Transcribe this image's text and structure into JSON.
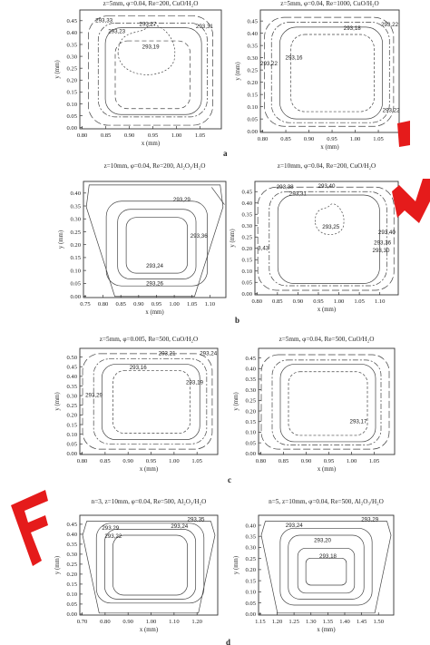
{
  "chart_data": [
    {
      "type": "contour",
      "title": "z=5mm, φ=0.04, Re=200, CuO/H₂O",
      "xlabel": "x (mm)",
      "ylabel": "y (mm)",
      "x_ticks": [
        "0.80",
        "0.85",
        "0.90",
        "0.95",
        "1.00",
        "1.05"
      ],
      "y_ticks": [
        "0.00",
        "0.05",
        "0.10",
        "0.15",
        "0.20",
        "0.25",
        "0.30",
        "0.35",
        "0.40",
        "0.45"
      ],
      "contour_labels": [
        "293,33",
        "293,27",
        "293,31",
        "293,23",
        "293,19"
      ]
    },
    {
      "type": "contour",
      "title": "z=5mm, φ=0.04, Re=1000, CuO/H₂O",
      "xlabel": "x (mm)",
      "ylabel": "y (mm)",
      "x_ticks": [
        "0.80",
        "0.85",
        "0.90",
        "0.95",
        "1.00",
        "1.05"
      ],
      "y_ticks": [
        "0.00",
        "0.05",
        "0.10",
        "0.15",
        "0.20",
        "0.25",
        "0.30",
        "0.35",
        "0.40",
        "0.45"
      ],
      "contour_labels": [
        "293,22",
        "293,18",
        "293,22",
        "293,16",
        "293,22"
      ]
    },
    {
      "type": "contour",
      "title": "z=10mm, φ=0.04, Re=200, Al₂O₃/H₂O",
      "xlabel": "x (mm)",
      "ylabel": "y (mm)",
      "x_ticks": [
        "0.75",
        "0.80",
        "0.85",
        "0.90",
        "0.95",
        "1.00",
        "1.05",
        "1.10"
      ],
      "y_ticks": [
        "0.00",
        "0.05",
        "0.10",
        "0.15",
        "0.20",
        "0.25",
        "0.30",
        "0.35",
        "0.40"
      ],
      "contour_labels": [
        "293,29",
        "293,36",
        "293,24",
        "293,26"
      ]
    },
    {
      "type": "contour",
      "title": "z=10mm, φ=0.04, Re=200, CuO/H₂O",
      "xlabel": "x (mm)",
      "ylabel": "y (mm)",
      "x_ticks": [
        "0.80",
        "0.85",
        "0.90",
        "0.95",
        "1.00",
        "1.05",
        "1.10"
      ],
      "y_ticks": [
        "0.00",
        "0.05",
        "0.10",
        "0.15",
        "0.20",
        "0.25",
        "0.30",
        "0.35",
        "0.40",
        "0.45"
      ],
      "contour_labels": [
        "293,38",
        "293,40",
        "293,31",
        "293,25",
        "293,40",
        "293,36",
        "293,30",
        "3,43"
      ]
    },
    {
      "type": "contour",
      "title": "z=5mm, φ=0.005, Re=500, CuO/H₂O",
      "xlabel": "x (mm)",
      "ylabel": "y (mm)",
      "x_ticks": [
        "0.80",
        "0.85",
        "0.90",
        "0.95",
        "1.00",
        "1.05"
      ],
      "y_ticks": [
        "0.00",
        "0.05",
        "0.10",
        "0.15",
        "0.20",
        "0.25",
        "0.30",
        "0.35",
        "0.40",
        "0.45",
        "0.50"
      ],
      "contour_labels": [
        "293,21",
        "293,24",
        "293,16",
        "293,19",
        "293,29"
      ]
    },
    {
      "type": "contour",
      "title": "z=5mm, φ=0.04, Re=500, CuO/H₂O",
      "xlabel": "x (mm)",
      "ylabel": "y (mm)",
      "x_ticks": [
        "0.80",
        "0.85",
        "0.90",
        "0.95",
        "1.00",
        "1.05"
      ],
      "y_ticks": [
        "0.00",
        "0.05",
        "0.10",
        "0.15",
        "0.20",
        "0.25",
        "0.30",
        "0.35",
        "0.40",
        "0.45"
      ],
      "contour_labels": [
        "293,17"
      ]
    },
    {
      "type": "contour",
      "title": "n=3, z=10mm, φ=0.04, Re=500, Al₂O₃/H₂O",
      "xlabel": "x (mm)",
      "ylabel": "y (mm)",
      "x_ticks": [
        "0.70",
        "0.80",
        "0.90",
        "1.00",
        "1.10",
        "1.20"
      ],
      "y_ticks": [
        "0.00",
        "0.05",
        "0.10",
        "0.15",
        "0.20",
        "0.25",
        "0.30",
        "0.35",
        "0.40",
        "0.45"
      ],
      "contour_labels": [
        "293,29",
        "293,35",
        "293,24",
        "293,22"
      ]
    },
    {
      "type": "contour",
      "title": "n=5, z=10mm, φ=0.04, Re=500, Al₂O₃/H₂O",
      "xlabel": "x (mm)",
      "ylabel": "y (mm)",
      "x_ticks": [
        "1.15",
        "1.20",
        "1.25",
        "1.30",
        "1.35",
        "1.40",
        "1.45",
        "1.50"
      ],
      "y_ticks": [
        "0.00",
        "0.05",
        "0.10",
        "0.15",
        "0.20",
        "0.25",
        "0.30",
        "0.35",
        "0.40"
      ],
      "contour_labels": [
        "293,29",
        "293,24",
        "293,20",
        "293,18"
      ]
    }
  ],
  "panel_letters": [
    "a",
    "b",
    "c",
    "d"
  ],
  "watermark_colors": {
    "stamp": "#e51b1b"
  }
}
